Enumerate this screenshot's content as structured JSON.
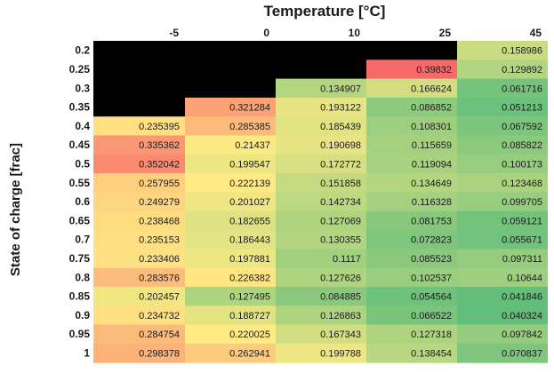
{
  "chart_data": {
    "type": "heatmap",
    "xlabel": "Temperature [°C]",
    "ylabel": "State of charge [frac]",
    "x": [
      "-5",
      "0",
      "10",
      "25",
      "45"
    ],
    "y": [
      "0.2",
      "0.25",
      "0.3",
      "0.35",
      "0.4",
      "0.45",
      "0.5",
      "0.55",
      "0.6",
      "0.65",
      "0.7",
      "0.75",
      "0.8",
      "0.85",
      "0.9",
      "0.95",
      "1"
    ],
    "values": [
      [
        null,
        null,
        null,
        null,
        0.158986
      ],
      [
        null,
        null,
        null,
        0.39832,
        0.129892
      ],
      [
        null,
        null,
        0.134907,
        0.166624,
        0.061716
      ],
      [
        null,
        0.321284,
        0.193122,
        0.086852,
        0.051213
      ],
      [
        0.235395,
        0.285385,
        0.185439,
        0.108301,
        0.067592
      ],
      [
        0.335362,
        0.21437,
        0.190698,
        0.115659,
        0.085822
      ],
      [
        0.352042,
        0.199547,
        0.172772,
        0.119094,
        0.100173
      ],
      [
        0.257955,
        0.222139,
        0.151858,
        0.134649,
        0.123468
      ],
      [
        0.249279,
        0.201027,
        0.142734,
        0.116328,
        0.099705
      ],
      [
        0.238468,
        0.182655,
        0.127069,
        0.081753,
        0.059121
      ],
      [
        0.235153,
        0.186443,
        0.130355,
        0.072823,
        0.055671
      ],
      [
        0.233406,
        0.197881,
        0.1117,
        0.085523,
        0.097311
      ],
      [
        0.283576,
        0.226382,
        0.127626,
        0.102537,
        0.10644
      ],
      [
        0.202457,
        0.127495,
        0.084885,
        0.054564,
        0.041846
      ],
      [
        0.234732,
        0.188727,
        0.126863,
        0.066522,
        0.040324
      ],
      [
        0.284754,
        0.220025,
        0.167343,
        0.127318,
        0.097842
      ],
      [
        0.298378,
        0.262941,
        0.199788,
        0.138454,
        0.070837
      ]
    ],
    "missing_color": "#000000",
    "colormap": [
      "#63be7b",
      "#ffeb84",
      "#f8696b"
    ],
    "color_range": [
      0.040324,
      0.39832
    ]
  }
}
